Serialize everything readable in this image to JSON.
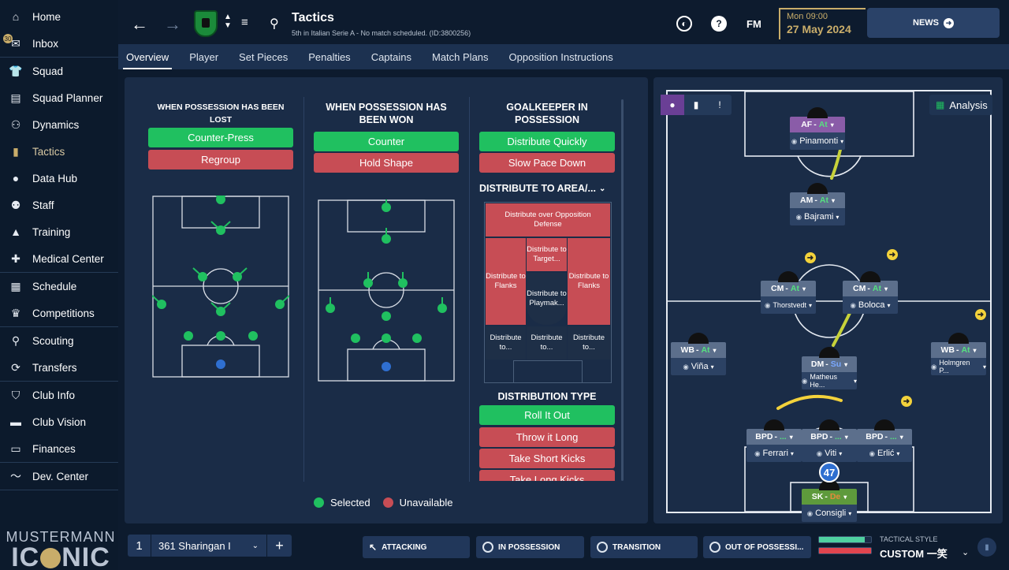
{
  "sidebar": {
    "groups": [
      [
        {
          "label": "Home",
          "icon": "home-icon"
        },
        {
          "label": "Inbox",
          "icon": "inbox-icon",
          "badge": "30"
        }
      ],
      [
        {
          "label": "Squad",
          "icon": "shirt-icon"
        },
        {
          "label": "Squad Planner",
          "icon": "clipboard-icon"
        },
        {
          "label": "Dynamics",
          "icon": "dynamics-icon"
        },
        {
          "label": "Tactics",
          "icon": "tactics-icon",
          "active": true
        },
        {
          "label": "Data Hub",
          "icon": "datahub-icon"
        },
        {
          "label": "Staff",
          "icon": "staff-icon"
        },
        {
          "label": "Training",
          "icon": "cone-icon"
        },
        {
          "label": "Medical Center",
          "icon": "medical-icon"
        }
      ],
      [
        {
          "label": "Schedule",
          "icon": "calendar-icon"
        },
        {
          "label": "Competitions",
          "icon": "trophy-icon"
        }
      ],
      [
        {
          "label": "Scouting",
          "icon": "search-icon"
        },
        {
          "label": "Transfers",
          "icon": "transfer-icon"
        }
      ],
      [
        {
          "label": "Club Info",
          "icon": "shield-icon"
        },
        {
          "label": "Club Vision",
          "icon": "briefcase-icon"
        },
        {
          "label": "Finances",
          "icon": "money-icon"
        }
      ],
      [
        {
          "label": "Dev. Center",
          "icon": "dev-center-icon"
        }
      ]
    ],
    "brand_line1": "MUSTERMANN",
    "brand_line2a": "IC",
    "brand_line2b": "NIC"
  },
  "topbar": {
    "title": "Tactics",
    "subtitle": "5th in Italian Serie A - No match scheduled. (ID:3800256)",
    "fm_label": "FM",
    "date_day": "Mon 09:00",
    "date_full": "27 May 2024",
    "news_label": "NEWS"
  },
  "tabs": [
    "Overview",
    "Player",
    "Set Pieces",
    "Penalties",
    "Captains",
    "Match Plans",
    "Opposition Instructions"
  ],
  "lost": {
    "title": "WHEN POSSESSION HAS BEEN LOST",
    "options": [
      {
        "label": "Counter-Press",
        "state": "sel"
      },
      {
        "label": "Regroup",
        "state": "unav"
      }
    ]
  },
  "won": {
    "title": "WHEN POSSESSION HAS BEEN WON",
    "options": [
      {
        "label": "Counter",
        "state": "sel"
      },
      {
        "label": "Hold Shape",
        "state": "unav"
      }
    ]
  },
  "gk": {
    "title": "GOALKEEPER IN POSSESSION",
    "options": [
      {
        "label": "Distribute Quickly",
        "state": "sel"
      },
      {
        "label": "Slow Pace Down",
        "state": "unav"
      }
    ],
    "area_dropdown": "DISTRIBUTE TO AREA/...",
    "zones": {
      "top": "Distribute over Opposition Defense",
      "target": "Distribute to Target...",
      "flank_l": "Distribute to Flanks",
      "flank_r": "Distribute to Flanks",
      "playmaker": "Distribute to Playmak...",
      "bl": "Distribute to...",
      "bc": "Distribute to...",
      "br": "Distribute to..."
    },
    "dist_type_title": "DISTRIBUTION TYPE",
    "dist_types": [
      {
        "label": "Roll It Out",
        "state": "sel"
      },
      {
        "label": "Throw it Long",
        "state": "unav"
      },
      {
        "label": "Take Short Kicks",
        "state": "unav"
      },
      {
        "label": "Take Long Kicks",
        "state": "unav"
      }
    ]
  },
  "legend": {
    "selected": "Selected",
    "unavailable": "Unavailable"
  },
  "analysis_label": "Analysis",
  "players": [
    {
      "role": "AF",
      "duty": "At",
      "name": "Pinamonti",
      "left": 171,
      "top": 32
    },
    {
      "role": "AM",
      "duty": "At",
      "name": "Bajrami",
      "left": 171,
      "top": 128
    },
    {
      "role": "CM",
      "duty": "At",
      "name": "Thorstvedt",
      "left": 134,
      "top": 240
    },
    {
      "role": "CM",
      "duty": "At",
      "name": "Boloca",
      "left": 238,
      "top": 240
    },
    {
      "role": "WB",
      "duty": "At",
      "name": "Viña",
      "left": 20,
      "top": 318
    },
    {
      "role": "DM",
      "duty": "Su",
      "name": "Matheus He...",
      "left": 186,
      "top": 336
    },
    {
      "role": "WB",
      "duty": "At",
      "name": "Holmgren P...",
      "left": 350,
      "top": 318
    },
    {
      "role": "BPD",
      "duty": "...",
      "name": "Ferrari",
      "left": 116,
      "top": 428
    },
    {
      "role": "BPD",
      "duty": "...",
      "name": "Viti",
      "left": 186,
      "top": 428
    },
    {
      "role": "BPD",
      "duty": "...",
      "name": "Erlić",
      "left": 256,
      "top": 428
    },
    {
      "role": "SK",
      "duty": "De",
      "name": "Consigli",
      "left": 186,
      "top": 504
    }
  ],
  "gk_number": "47",
  "bottom": {
    "tactic_num": "1",
    "tactic_name": "361 Sharingan I",
    "phases": [
      "ATTACKING",
      "IN POSSESSION",
      "TRANSITION",
      "OUT OF POSSESSI..."
    ],
    "ts_label": "TACTICAL STYLE",
    "ts_value": "CUSTOM 一笑"
  },
  "colors": {
    "selected": "#20c060",
    "unavailable": "#c74d55",
    "accent": "#c9ad6a"
  }
}
